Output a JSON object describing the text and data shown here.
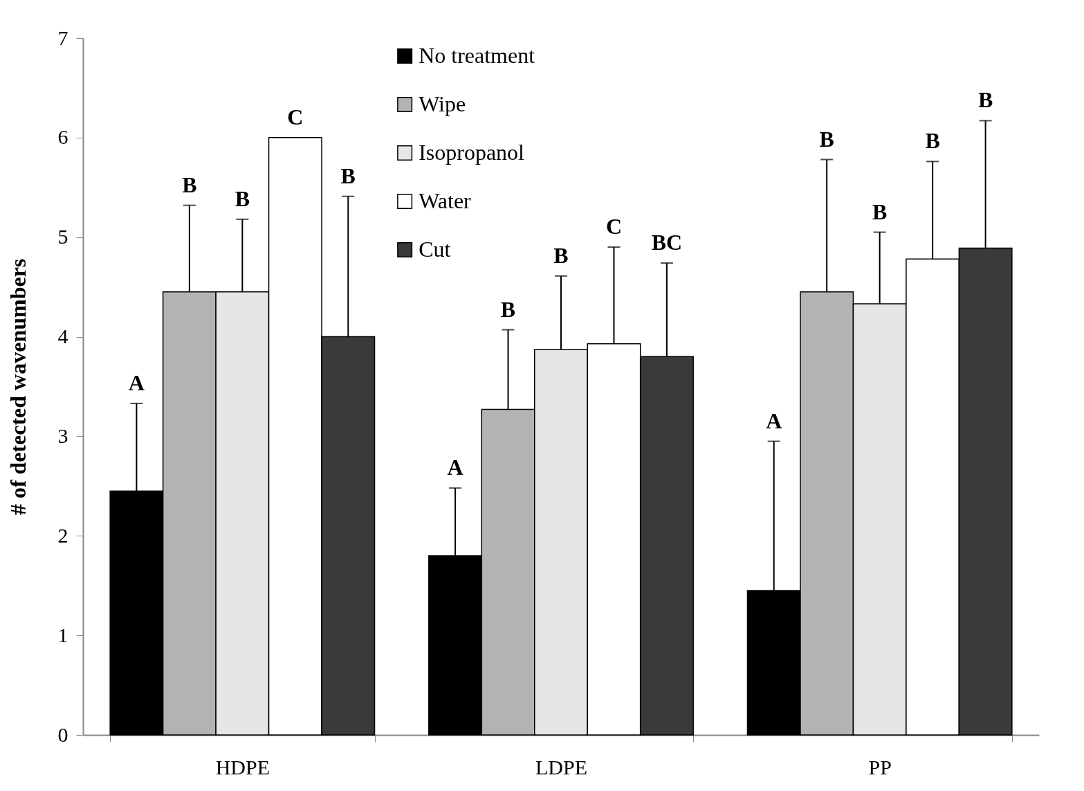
{
  "chart_data": {
    "type": "bar",
    "ylabel": "# of detected wavenumbers",
    "categories": [
      "HDPE",
      "LDPE",
      "PP"
    ],
    "ylim": [
      0,
      7
    ],
    "yticks": [
      0,
      1,
      2,
      3,
      4,
      5,
      6,
      7
    ],
    "grid": false,
    "legend": "top",
    "series": [
      {
        "name": "No treatment",
        "color": "#000000",
        "values": [
          2.45,
          1.8,
          1.45
        ],
        "errors": [
          [
            2.45,
            3.33
          ],
          [
            1.8,
            2.48
          ],
          [
            1.45,
            2.95
          ]
        ]
      },
      {
        "name": "Wipe",
        "color": "#b3b3b3",
        "values": [
          4.45,
          3.27,
          4.45
        ],
        "errors": [
          [
            4.45,
            5.32
          ],
          [
            3.27,
            4.07
          ],
          [
            4.45,
            5.78
          ]
        ]
      },
      {
        "name": "Isopropanol",
        "color": "#e6e6e6",
        "values": [
          4.45,
          3.87,
          4.33
        ],
        "errors": [
          [
            4.45,
            5.18
          ],
          [
            3.87,
            4.61
          ],
          [
            4.33,
            5.05
          ]
        ]
      },
      {
        "name": "Water",
        "color": "#ffffff",
        "values": [
          6.0,
          3.93,
          4.78
        ],
        "errors": [
          null,
          [
            3.93,
            4.9
          ],
          [
            4.78,
            5.76
          ]
        ]
      },
      {
        "name": "Cut",
        "color": "#3a3a3a",
        "values": [
          4.0,
          3.8,
          4.89
        ],
        "errors": [
          [
            4.0,
            5.41
          ],
          [
            3.8,
            4.74
          ],
          [
            4.89,
            6.17
          ]
        ]
      }
    ],
    "annotations": [
      "A",
      "B",
      "B",
      "C",
      "B",
      "A",
      "B",
      "B",
      "C",
      "BC",
      "A",
      "B",
      "B",
      "B",
      "B"
    ]
  }
}
